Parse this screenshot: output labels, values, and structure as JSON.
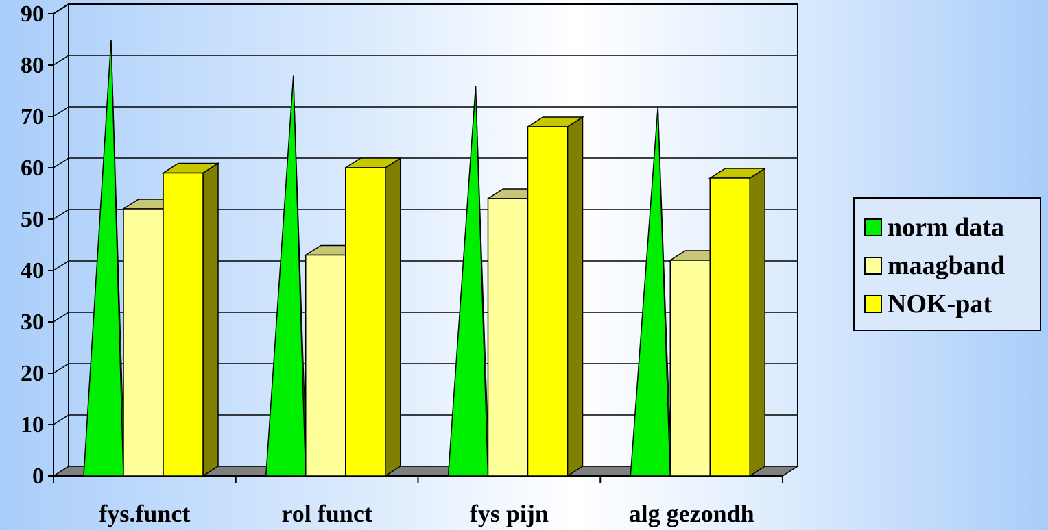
{
  "chart_data": {
    "type": "bar",
    "categories": [
      "fys.funct",
      "rol funct",
      "fys pijn",
      "alg gezondh"
    ],
    "series": [
      {
        "name": "norm data",
        "values": [
          84,
          77,
          75,
          71
        ],
        "color": "#00ee00",
        "shape": "cone"
      },
      {
        "name": "maagband",
        "values": [
          52,
          43,
          54,
          42
        ],
        "color": "#ffff99",
        "shape": "box"
      },
      {
        "name": "NOK-pat",
        "values": [
          59,
          60,
          68,
          58
        ],
        "color": "#ffff00",
        "shape": "box"
      }
    ],
    "ylim": [
      0,
      90
    ],
    "yticks": [
      "0",
      "10",
      "20",
      "30",
      "40",
      "50",
      "60",
      "70",
      "80",
      "90"
    ],
    "grid": true,
    "legend_position": "right",
    "title": "",
    "xlabel": "",
    "ylabel": ""
  },
  "legend": {
    "items": [
      {
        "label": "norm data",
        "color": "#00ee00"
      },
      {
        "label": "maagband",
        "color": "#ffff99"
      },
      {
        "label": "NOK-pat",
        "color": "#ffff00"
      }
    ]
  }
}
